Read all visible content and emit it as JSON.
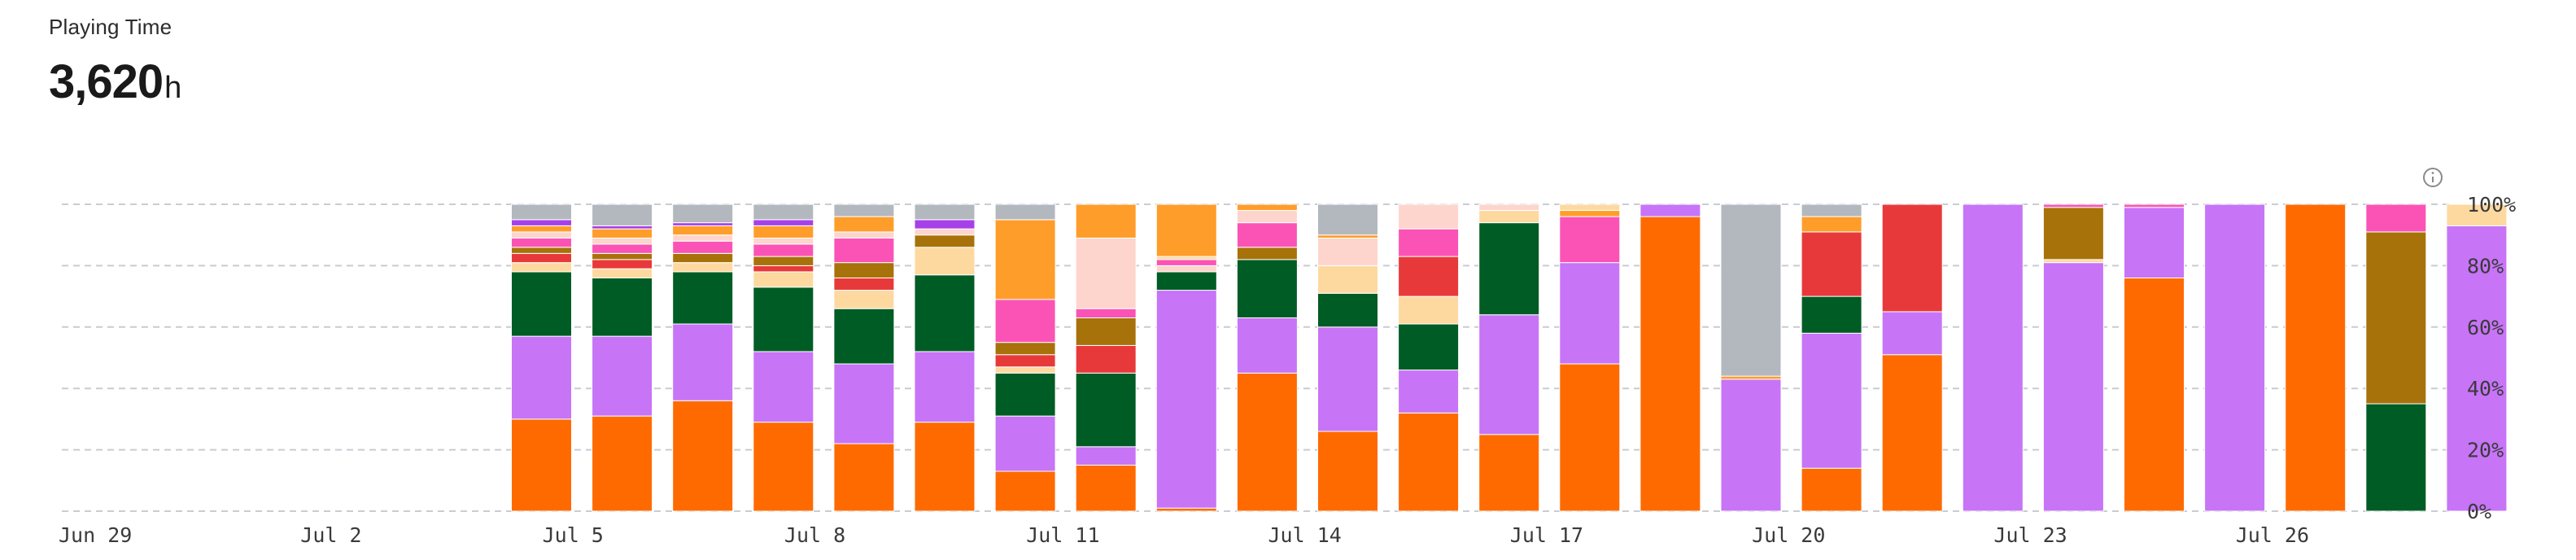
{
  "header": {
    "title": "Playing Time",
    "total": "3,620",
    "unit": "h"
  },
  "icons": {
    "info": "info-icon"
  },
  "chart_data": {
    "type": "bar",
    "stacked": true,
    "normalized": true,
    "yaxis_ticks": [
      "0%",
      "20%",
      "40%",
      "60%",
      "80%",
      "100%"
    ],
    "grid": "horizontal-dashed",
    "x_tick_labels": [
      {
        "index": 0,
        "label": "Jun 29"
      },
      {
        "index": 3,
        "label": "Jul 2"
      },
      {
        "index": 6,
        "label": "Jul 5"
      },
      {
        "index": 9,
        "label": "Jul 8"
      },
      {
        "index": 12,
        "label": "Jul 11"
      },
      {
        "index": 15,
        "label": "Jul 14"
      },
      {
        "index": 18,
        "label": "Jul 17"
      },
      {
        "index": 21,
        "label": "Jul 20"
      },
      {
        "index": 24,
        "label": "Jul 23"
      },
      {
        "index": 27,
        "label": "Jul 26"
      }
    ],
    "categories": [
      "Jun 29",
      "Jun 30",
      "Jul 1",
      "Jul 2",
      "Jul 3",
      "Jul 4",
      "Jul 5",
      "Jul 6",
      "Jul 7",
      "Jul 8",
      "Jul 9",
      "Jul 10",
      "Jul 11",
      "Jul 12",
      "Jul 13",
      "Jul 14",
      "Jul 15",
      "Jul 16",
      "Jul 17",
      "Jul 18",
      "Jul 19",
      "Jul 20",
      "Jul 21",
      "Jul 22",
      "Jul 23",
      "Jul 24",
      "Jul 25",
      "Jul 26",
      "Jul 27",
      "Jul 28"
    ],
    "colors": {
      "orange": "#ff6a00",
      "purple": "#c774f7",
      "green": "#005c25",
      "cream": "#fdd9a0",
      "red": "#e8393a",
      "brown": "#a8720a",
      "pink": "#fb53b5",
      "peach": "#fdd5cc",
      "amber": "#ff9d2a",
      "violet": "#a740e8",
      "gray": "#b3b8bf"
    },
    "bars": [
      {
        "day": "Jun 29",
        "segments": []
      },
      {
        "day": "Jun 30",
        "segments": []
      },
      {
        "day": "Jul 1",
        "segments": []
      },
      {
        "day": "Jul 2",
        "segments": []
      },
      {
        "day": "Jul 3",
        "segments": []
      },
      {
        "day": "Jul 4",
        "segments": [
          [
            "orange",
            30
          ],
          [
            "purple",
            27
          ],
          [
            "green",
            21
          ],
          [
            "cream",
            3
          ],
          [
            "red",
            3
          ],
          [
            "brown",
            2
          ],
          [
            "pink",
            3
          ],
          [
            "peach",
            2
          ],
          [
            "amber",
            2
          ],
          [
            "violet",
            2
          ],
          [
            "gray",
            5
          ]
        ]
      },
      {
        "day": "Jul 5",
        "segments": [
          [
            "orange",
            31
          ],
          [
            "purple",
            26
          ],
          [
            "green",
            19
          ],
          [
            "cream",
            3
          ],
          [
            "red",
            3
          ],
          [
            "brown",
            2
          ],
          [
            "pink",
            3
          ],
          [
            "peach",
            2
          ],
          [
            "amber",
            3
          ],
          [
            "violet",
            1
          ],
          [
            "gray",
            7
          ]
        ]
      },
      {
        "day": "Jul 6",
        "segments": [
          [
            "orange",
            36
          ],
          [
            "purple",
            25
          ],
          [
            "green",
            17
          ],
          [
            "cream",
            3
          ],
          [
            "brown",
            3
          ],
          [
            "pink",
            4
          ],
          [
            "peach",
            2
          ],
          [
            "amber",
            3
          ],
          [
            "violet",
            1
          ],
          [
            "gray",
            6
          ]
        ]
      },
      {
        "day": "Jul 7",
        "segments": [
          [
            "orange",
            29
          ],
          [
            "purple",
            23
          ],
          [
            "green",
            21
          ],
          [
            "cream",
            5
          ],
          [
            "red",
            2
          ],
          [
            "brown",
            3
          ],
          [
            "pink",
            4
          ],
          [
            "peach",
            2
          ],
          [
            "amber",
            4
          ],
          [
            "violet",
            2
          ],
          [
            "gray",
            5
          ]
        ]
      },
      {
        "day": "Jul 8",
        "segments": [
          [
            "orange",
            22
          ],
          [
            "purple",
            26
          ],
          [
            "green",
            18
          ],
          [
            "cream",
            6
          ],
          [
            "red",
            4
          ],
          [
            "brown",
            5
          ],
          [
            "pink",
            8
          ],
          [
            "peach",
            2
          ],
          [
            "amber",
            5
          ],
          [
            "gray",
            4
          ]
        ]
      },
      {
        "day": "Jul 9",
        "segments": [
          [
            "orange",
            29
          ],
          [
            "purple",
            23
          ],
          [
            "green",
            25
          ],
          [
            "cream",
            9
          ],
          [
            "brown",
            4
          ],
          [
            "peach",
            2
          ],
          [
            "violet",
            3
          ],
          [
            "gray",
            5
          ]
        ]
      },
      {
        "day": "Jul 10",
        "segments": [
          [
            "orange",
            13
          ],
          [
            "purple",
            18
          ],
          [
            "green",
            14
          ],
          [
            "cream",
            2
          ],
          [
            "red",
            4
          ],
          [
            "brown",
            4
          ],
          [
            "pink",
            14
          ],
          [
            "amber",
            26
          ],
          [
            "gray",
            5
          ]
        ]
      },
      {
        "day": "Jul 11",
        "segments": [
          [
            "orange",
            15
          ],
          [
            "purple",
            6
          ],
          [
            "green",
            24
          ],
          [
            "red",
            9
          ],
          [
            "brown",
            9
          ],
          [
            "pink",
            3
          ],
          [
            "peach",
            23
          ],
          [
            "amber",
            11
          ]
        ]
      },
      {
        "day": "Jul 12",
        "segments": [
          [
            "orange",
            1
          ],
          [
            "purple",
            71
          ],
          [
            "green",
            6
          ],
          [
            "peach",
            2
          ],
          [
            "pink",
            2
          ],
          [
            "cream",
            1
          ],
          [
            "amber",
            17
          ]
        ]
      },
      {
        "day": "Jul 13",
        "segments": [
          [
            "orange",
            45
          ],
          [
            "purple",
            18
          ],
          [
            "green",
            19
          ],
          [
            "brown",
            4
          ],
          [
            "pink",
            8
          ],
          [
            "peach",
            4
          ],
          [
            "amber",
            2
          ]
        ]
      },
      {
        "day": "Jul 14",
        "segments": [
          [
            "orange",
            26
          ],
          [
            "purple",
            34
          ],
          [
            "green",
            11
          ],
          [
            "cream",
            9
          ],
          [
            "peach",
            9
          ],
          [
            "amber",
            1
          ],
          [
            "gray",
            10
          ]
        ]
      },
      {
        "day": "Jul 15",
        "segments": [
          [
            "orange",
            32
          ],
          [
            "purple",
            14
          ],
          [
            "green",
            15
          ],
          [
            "cream",
            9
          ],
          [
            "red",
            13
          ],
          [
            "pink",
            9
          ],
          [
            "peach",
            8
          ]
        ]
      },
      {
        "day": "Jul 16",
        "segments": [
          [
            "orange",
            25
          ],
          [
            "purple",
            39
          ],
          [
            "green",
            30
          ],
          [
            "cream",
            4
          ],
          [
            "peach",
            2
          ]
        ]
      },
      {
        "day": "Jul 17",
        "segments": [
          [
            "orange",
            48
          ],
          [
            "purple",
            33
          ],
          [
            "pink",
            15
          ],
          [
            "amber",
            2
          ],
          [
            "cream",
            2
          ]
        ]
      },
      {
        "day": "Jul 18",
        "segments": [
          [
            "orange",
            96
          ],
          [
            "purple",
            4
          ]
        ]
      },
      {
        "day": "Jul 19",
        "segments": [
          [
            "purple",
            43
          ],
          [
            "amber",
            1
          ],
          [
            "gray",
            56
          ]
        ]
      },
      {
        "day": "Jul 20",
        "segments": [
          [
            "orange",
            14
          ],
          [
            "purple",
            44
          ],
          [
            "green",
            12
          ],
          [
            "red",
            21
          ],
          [
            "amber",
            5
          ],
          [
            "gray",
            4
          ]
        ]
      },
      {
        "day": "Jul 21",
        "segments": [
          [
            "orange",
            51
          ],
          [
            "purple",
            14
          ],
          [
            "red",
            35
          ]
        ]
      },
      {
        "day": "Jul 22",
        "segments": [
          [
            "purple",
            100
          ]
        ]
      },
      {
        "day": "Jul 23",
        "segments": [
          [
            "purple",
            81
          ],
          [
            "cream",
            1
          ],
          [
            "brown",
            17
          ],
          [
            "pink",
            1
          ]
        ]
      },
      {
        "day": "Jul 24",
        "segments": [
          [
            "orange",
            76
          ],
          [
            "purple",
            23
          ],
          [
            "pink",
            1
          ]
        ]
      },
      {
        "day": "Jul 25",
        "segments": [
          [
            "purple",
            100
          ]
        ]
      },
      {
        "day": "Jul 26",
        "segments": [
          [
            "orange",
            100
          ]
        ]
      },
      {
        "day": "Jul 27",
        "segments": [
          [
            "green",
            35
          ],
          [
            "brown",
            56
          ],
          [
            "pink",
            9
          ]
        ]
      },
      {
        "day": "Jul 28",
        "segments": [
          [
            "purple",
            93
          ],
          [
            "cream",
            7
          ]
        ]
      }
    ]
  }
}
